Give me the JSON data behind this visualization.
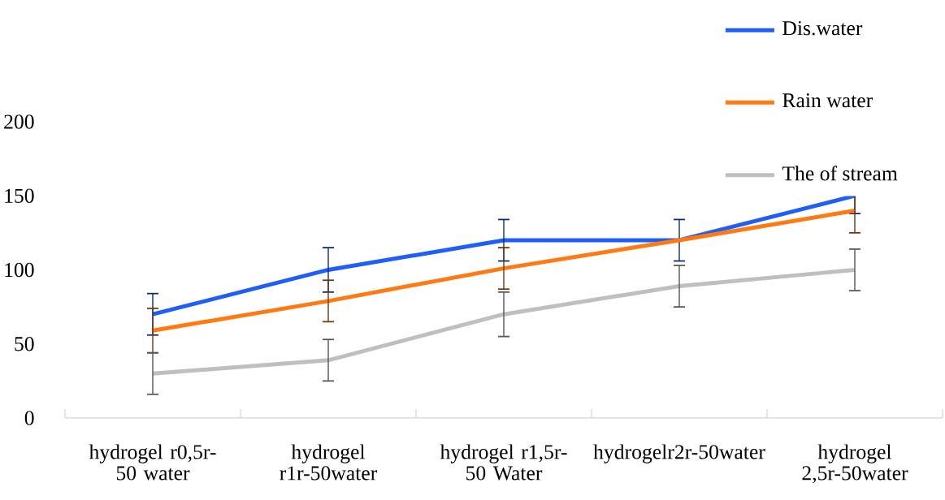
{
  "chart_data": {
    "type": "line",
    "categories": [
      "hydrogel r0,5r-50 water",
      "hydrogel r1r-50water",
      "hydrogel r1,5r-50 Water",
      "hydrogelr2r-50water",
      "hydrogel 2,5r-50water"
    ],
    "series": [
      {
        "name": "Dis.water",
        "color": "#1f5ff5",
        "values": [
          70,
          100,
          120,
          120,
          150
        ],
        "errors": [
          14,
          15,
          14,
          14,
          12
        ]
      },
      {
        "name": "Rain water",
        "color": "#ff7a12",
        "values": [
          59,
          79,
          101,
          120,
          140
        ],
        "errors": [
          15,
          14,
          14,
          null,
          15
        ]
      },
      {
        "name": "The of stream",
        "color": "#bfbfbf",
        "values": [
          30,
          39,
          70,
          89,
          100
        ],
        "errors": [
          14,
          14,
          15,
          14,
          14
        ]
      }
    ],
    "ylim": [
      0,
      200
    ],
    "yticks": [
      0,
      50,
      100,
      150,
      200
    ],
    "grid": false,
    "legend": "top right",
    "marker": "none",
    "line_style": "solid"
  }
}
